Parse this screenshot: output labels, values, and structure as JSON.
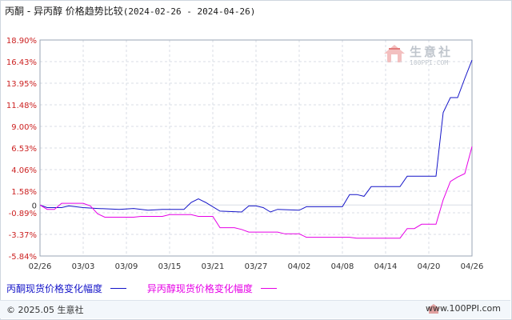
{
  "header": {
    "title_main": "丙酮 - 异丙醇 价格趋势比较",
    "title_range": "(2024-02-26 - 2024-04-26)"
  },
  "watermark": {
    "brand": "生意社",
    "url": "100PPI.COM"
  },
  "footer": {
    "copyright": "© 2025.05 生意社",
    "url": "www.100PPI.com"
  },
  "colors": {
    "series1": "#1414c8",
    "series2": "#e600e6",
    "grid": "#d8dee6",
    "axis_text": "#333333",
    "axis_text_neg": "#cc2222"
  },
  "chart_data": {
    "type": "line",
    "title": "丙酮 - 异丙醇 价格趋势比较(2024-02-26 - 2024-04-26)",
    "xlabel": "",
    "ylabel": "",
    "ylim": [
      -5.84,
      18.9
    ],
    "yticks": [
      18.9,
      16.43,
      13.95,
      11.48,
      9.0,
      6.53,
      4.06,
      1.58,
      0,
      -0.89,
      -3.37,
      -5.84
    ],
    "ytick_labels": [
      "18.90%",
      "16.43%",
      "13.95%",
      "11.48%",
      "9.00%",
      "6.53%",
      "4.06%",
      "1.58%",
      "0",
      "-0.89%",
      "-3.37%",
      "-5.84%"
    ],
    "xlim": [
      "2024-02-26",
      "2024-04-26"
    ],
    "xticks": [
      "2024-02-26",
      "2024-03-03",
      "2024-03-09",
      "2024-03-15",
      "2024-03-21",
      "2024-03-27",
      "2024-04-02",
      "2024-04-08",
      "2024-04-14",
      "2024-04-20",
      "2024-04-26"
    ],
    "xtick_labels": [
      "02/26",
      "03/03",
      "03/09",
      "03/15",
      "03/21",
      "03/27",
      "04/02",
      "04/08",
      "04/14",
      "04/20",
      "04/26"
    ],
    "grid": true,
    "legend": "bottom-left",
    "series": [
      {
        "name": "丙酮现货价格变化幅度",
        "points": [
          [
            "2024-02-26",
            0
          ],
          [
            "2024-02-27",
            -0.3
          ],
          [
            "2024-02-29",
            -0.3
          ],
          [
            "2024-03-01",
            -0.1
          ],
          [
            "2024-03-03",
            -0.3
          ],
          [
            "2024-03-05",
            -0.4
          ],
          [
            "2024-03-08",
            -0.5
          ],
          [
            "2024-03-10",
            -0.4
          ],
          [
            "2024-03-12",
            -0.6
          ],
          [
            "2024-03-14",
            -0.5
          ],
          [
            "2024-03-17",
            -0.5
          ],
          [
            "2024-03-18",
            0.3
          ],
          [
            "2024-03-19",
            0.7
          ],
          [
            "2024-03-20",
            0.3
          ],
          [
            "2024-03-22",
            -0.7
          ],
          [
            "2024-03-25",
            -0.8
          ],
          [
            "2024-03-26",
            -0.1
          ],
          [
            "2024-03-27",
            -0.1
          ],
          [
            "2024-03-28",
            -0.3
          ],
          [
            "2024-03-29",
            -0.8
          ],
          [
            "2024-03-30",
            -0.5
          ],
          [
            "2024-04-02",
            -0.6
          ],
          [
            "2024-04-03",
            -0.2
          ],
          [
            "2024-04-05",
            -0.2
          ],
          [
            "2024-04-08",
            -0.2
          ],
          [
            "2024-04-09",
            1.2
          ],
          [
            "2024-04-10",
            1.2
          ],
          [
            "2024-04-11",
            1.0
          ],
          [
            "2024-04-12",
            2.1
          ],
          [
            "2024-04-15",
            2.1
          ],
          [
            "2024-04-16",
            2.1
          ],
          [
            "2024-04-17",
            3.3
          ],
          [
            "2024-04-21",
            3.3
          ],
          [
            "2024-04-22",
            10.6
          ],
          [
            "2024-04-23",
            12.3
          ],
          [
            "2024-04-24",
            12.3
          ],
          [
            "2024-04-25",
            14.5
          ],
          [
            "2024-04-26",
            16.6
          ]
        ]
      },
      {
        "name": "异丙醇现货价格变化幅度",
        "points": [
          [
            "2024-02-26",
            0
          ],
          [
            "2024-02-27",
            -0.5
          ],
          [
            "2024-02-28",
            -0.5
          ],
          [
            "2024-02-29",
            0.2
          ],
          [
            "2024-03-03",
            0.2
          ],
          [
            "2024-03-04",
            -0.1
          ],
          [
            "2024-03-05",
            -1.0
          ],
          [
            "2024-03-06",
            -1.4
          ],
          [
            "2024-03-10",
            -1.4
          ],
          [
            "2024-03-11",
            -1.3
          ],
          [
            "2024-03-14",
            -1.3
          ],
          [
            "2024-03-15",
            -1.1
          ],
          [
            "2024-03-18",
            -1.1
          ],
          [
            "2024-03-19",
            -1.3
          ],
          [
            "2024-03-21",
            -1.3
          ],
          [
            "2024-03-22",
            -2.6
          ],
          [
            "2024-03-24",
            -2.6
          ],
          [
            "2024-03-25",
            -2.8
          ],
          [
            "2024-03-26",
            -3.1
          ],
          [
            "2024-03-30",
            -3.1
          ],
          [
            "2024-03-31",
            -3.3
          ],
          [
            "2024-04-02",
            -3.3
          ],
          [
            "2024-04-03",
            -3.7
          ],
          [
            "2024-04-09",
            -3.7
          ],
          [
            "2024-04-10",
            -3.8
          ],
          [
            "2024-04-16",
            -3.8
          ],
          [
            "2024-04-17",
            -2.7
          ],
          [
            "2024-04-18",
            -2.7
          ],
          [
            "2024-04-19",
            -2.2
          ],
          [
            "2024-04-21",
            -2.2
          ],
          [
            "2024-04-22",
            0.6
          ],
          [
            "2024-04-23",
            2.7
          ],
          [
            "2024-04-24",
            3.2
          ],
          [
            "2024-04-25",
            3.6
          ],
          [
            "2024-04-26",
            6.7
          ]
        ]
      }
    ]
  }
}
